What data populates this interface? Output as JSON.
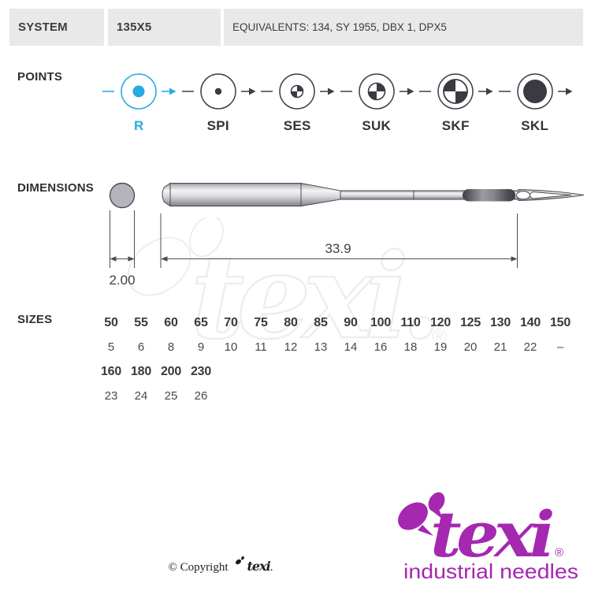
{
  "header": {
    "system_label": "SYSTEM",
    "system_value": "135X5",
    "equivalents": "EQUIVALENTS: 134, SY 1955, DBX 1, DPX5"
  },
  "points": {
    "label": "POINTS",
    "items": [
      {
        "code": "R",
        "style": "solid-medium-accent",
        "active": true
      },
      {
        "code": "SPI",
        "style": "solid-tiny",
        "active": false
      },
      {
        "code": "SES",
        "style": "quad-small",
        "active": false
      },
      {
        "code": "SUK",
        "style": "quad-medium",
        "active": false
      },
      {
        "code": "SKF",
        "style": "quad-large",
        "active": false
      },
      {
        "code": "SKL",
        "style": "solid-large",
        "active": false
      }
    ]
  },
  "dimensions": {
    "label": "DIMENSIONS",
    "shank_diameter": "2.00",
    "length": "33.9"
  },
  "sizes": {
    "label": "SIZES",
    "groups": [
      {
        "nm": [
          "50",
          "55",
          "60",
          "65",
          "70",
          "75",
          "80",
          "85",
          "90",
          "100",
          "110",
          "120",
          "125",
          "130",
          "140",
          "150"
        ],
        "size": [
          "5",
          "6",
          "8",
          "9",
          "10",
          "11",
          "12",
          "13",
          "14",
          "16",
          "18",
          "19",
          "20",
          "21",
          "22",
          "–"
        ]
      },
      {
        "nm": [
          "160",
          "180",
          "200",
          "230"
        ],
        "size": [
          "23",
          "24",
          "25",
          "26"
        ]
      }
    ]
  },
  "footer": {
    "copyright_prefix": "© Copyright",
    "copyright_brand": "texi",
    "copyright_suffix": ".",
    "brand_name": "texi",
    "registered_mark": "®",
    "tagline": "industrial needles"
  },
  "colors": {
    "accent": "#29abe2",
    "brand_magenta": "#a428b0",
    "header_box": "#e9e9e9",
    "ink": "#33333b",
    "line": "#4c4c54"
  }
}
